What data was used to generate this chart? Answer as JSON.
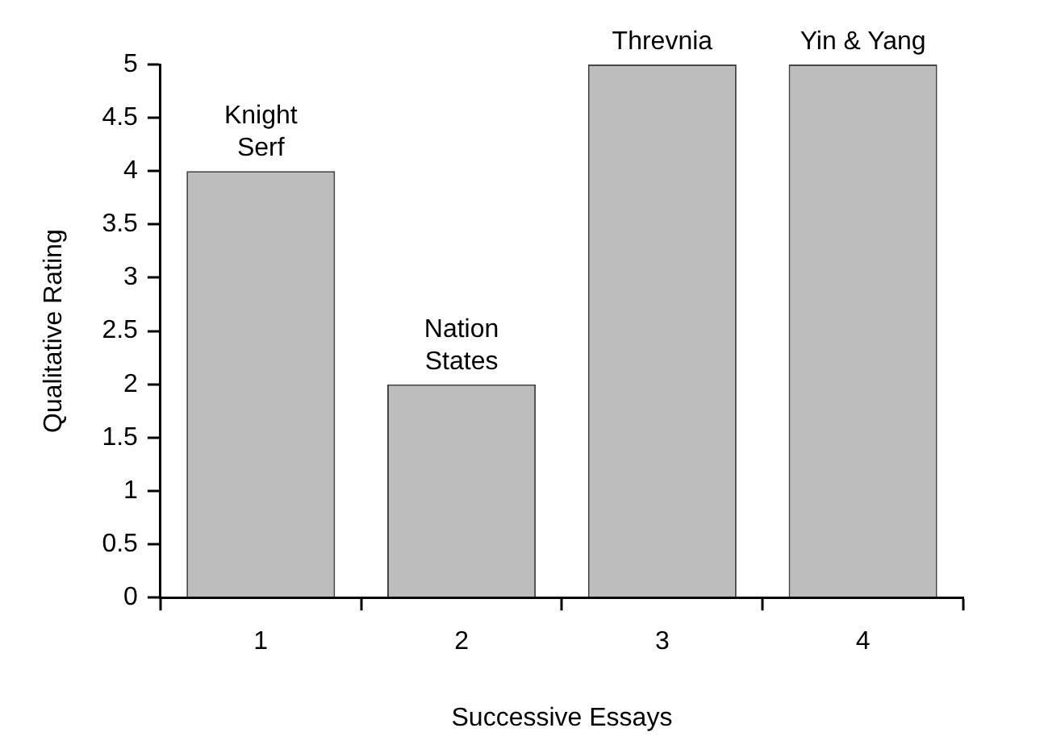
{
  "chart_data": {
    "type": "bar",
    "xlabel": "Successive Essays",
    "ylabel": "Qualitative Rating",
    "categories": [
      "1",
      "2",
      "3",
      "4"
    ],
    "values": [
      4,
      2,
      5,
      5
    ],
    "color": "#bdbdbd",
    "ylim": [
      0,
      5
    ],
    "yticks": [
      0,
      0.5,
      1,
      1.5,
      2,
      2.5,
      3,
      3.5,
      4,
      4.5,
      5
    ],
    "grid": false,
    "legend": false,
    "annotations": [
      {
        "text": "Knight\nSerf",
        "x": "1",
        "y": 4
      },
      {
        "text": "Nation\nStates",
        "x": "2",
        "y": 2
      },
      {
        "text": "Threvnia",
        "x": "3",
        "y": 5
      },
      {
        "text": "Yin & Yang",
        "x": "4",
        "y": 5
      }
    ]
  }
}
